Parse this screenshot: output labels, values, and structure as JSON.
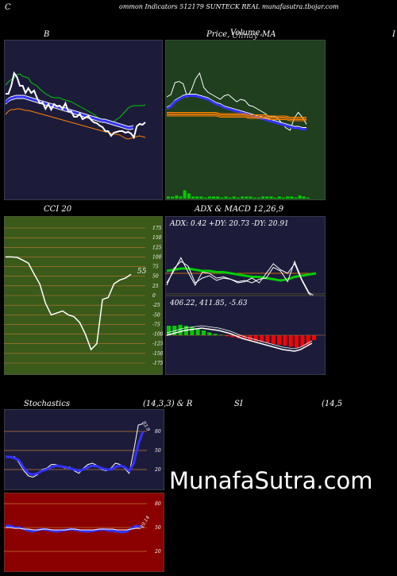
{
  "header": {
    "corner_letter": "C",
    "title": "ommon  Indicators 512179 SUNTECK REAL  munafasutra.tbojar.com",
    "right_edge_letter": "I"
  },
  "panels": {
    "bollinger": {
      "title": "B"
    },
    "price": {
      "title_a": "Price,",
      "title_b": "Volume,",
      "title_c": "MA",
      "title_overlap": "Ullnay"
    },
    "cci": {
      "title": "CCI 20",
      "last_value": "55",
      "ticks": [
        "175",
        "150",
        "125",
        "100",
        "75",
        "50",
        "25",
        "0",
        "-25",
        "-50",
        "-75",
        "-100",
        "-125",
        "-150",
        "-175"
      ]
    },
    "adx": {
      "title": "ADX  & MACD 12,26,9",
      "readout": "ADX: 0.42  +DY: 20.73 -DY: 20.91"
    },
    "macd": {
      "readout": "406.22,  411.85,  -5.63"
    },
    "stoch": {
      "title_left": "Stochastics",
      "title_mid": "(14,3,3) & R",
      "title_si": "SI",
      "title_right": "(14,5",
      "ticks": [
        "80",
        "50",
        "20"
      ],
      "last_label": "83.9"
    },
    "rsi": {
      "ticks": [
        "80",
        "50",
        "20"
      ],
      "last_label": "49.14"
    }
  },
  "watermark": "MunafaSutra.com",
  "colors": {
    "bollinger_bg": "#1c1c3a",
    "price_bg": "#1f3f1f",
    "cci_bg": "#3a5a1a",
    "adx_bg": "#1c1c3a",
    "stoch_bg": "#1c1c3a",
    "rsi_bg": "#8b0000"
  },
  "chart_data": [
    {
      "type": "line",
      "name": "bollinger",
      "series": [
        {
          "name": "upper",
          "color": "#00cc00",
          "values": [
            63,
            67,
            70,
            72,
            76,
            77,
            74,
            73,
            72,
            66,
            64,
            62,
            58,
            55,
            52,
            50,
            48,
            47,
            47,
            47,
            45,
            44,
            43,
            42,
            40,
            38,
            36,
            34,
            32,
            30,
            28,
            26,
            23,
            20,
            19,
            18,
            17,
            16,
            17,
            20,
            22,
            26,
            30,
            34,
            36,
            37,
            37,
            37,
            37,
            38
          ]
        },
        {
          "name": "middle",
          "color": "#3333ff",
          "values": [
            41,
            44,
            46,
            47,
            48,
            48,
            48,
            48,
            47,
            46,
            45,
            44,
            43,
            42,
            41,
            40,
            39,
            38,
            37,
            36,
            35,
            34,
            33,
            32,
            31,
            30,
            29,
            28,
            27,
            26,
            25,
            24,
            23,
            22,
            21,
            20,
            19,
            18,
            18,
            17,
            16,
            15,
            14,
            13,
            12,
            11,
            10,
            9,
            9,
            10
          ]
        },
        {
          "name": "lower",
          "color": "#ff8000",
          "values": [
            26,
            30,
            32,
            32,
            33,
            33,
            32,
            31,
            31,
            30,
            29,
            28,
            27,
            26,
            25,
            24,
            23,
            22,
            21,
            20,
            19,
            18,
            17,
            16,
            15,
            14,
            13,
            12,
            11,
            10,
            9,
            8,
            7,
            6,
            5,
            4,
            3,
            2,
            1,
            1,
            0,
            -2,
            -4,
            -5,
            -4,
            -3,
            -2,
            -1,
            -2,
            -3
          ]
        },
        {
          "name": "price",
          "color": "#ffffff",
          "values": [
            52,
            52,
            62,
            78,
            73,
            62,
            62,
            53,
            59,
            53,
            56,
            47,
            40,
            41,
            33,
            39,
            32,
            39,
            36,
            37,
            33,
            40,
            30,
            30,
            23,
            23,
            27,
            20,
            22,
            24,
            19,
            16,
            15,
            12,
            10,
            5,
            5,
            -1,
            3,
            4,
            5,
            5,
            3,
            4,
            2,
            -3,
            11,
            14,
            13,
            16
          ]
        }
      ]
    },
    {
      "type": "line",
      "name": "price-ma",
      "series": [
        {
          "name": "price",
          "color": "#ffffff",
          "values": [
            22,
            24,
            34,
            35,
            33,
            22,
            28,
            37,
            42,
            30,
            26,
            24,
            22,
            20,
            23,
            24,
            21,
            18,
            20,
            19,
            15,
            14,
            12,
            10,
            8,
            5,
            6,
            4,
            0,
            -4,
            -6,
            4,
            9,
            5,
            -1
          ]
        },
        {
          "name": "ma-blue",
          "color": "#3333ff",
          "values": [
            12,
            14,
            18,
            20,
            22,
            23,
            23,
            23,
            22,
            21,
            20,
            18,
            16,
            15,
            13,
            12,
            11,
            10,
            9,
            8,
            7,
            6,
            5,
            4,
            3,
            2,
            1,
            0,
            -1,
            -2,
            -3,
            -4,
            -4,
            -5,
            -5
          ]
        },
        {
          "name": "ma-orange",
          "color": "#ff8000",
          "values": [
            9,
            9,
            9,
            9,
            9,
            9,
            9,
            9,
            9,
            9,
            9,
            9,
            9,
            8,
            8,
            8,
            8,
            8,
            8,
            8,
            7,
            7,
            7,
            7,
            7,
            6,
            6,
            6,
            6,
            6,
            5,
            5,
            5,
            5,
            5
          ]
        }
      ],
      "volume": [
        2,
        2,
        3,
        2,
        8,
        5,
        2,
        2,
        2,
        1,
        2,
        2,
        2,
        1,
        2,
        1,
        2,
        1,
        2,
        2,
        2,
        1,
        1,
        2,
        2,
        2,
        1,
        2,
        1,
        2,
        2,
        1,
        3,
        2,
        1
      ]
    },
    {
      "type": "line",
      "name": "cci-20",
      "ylim": [
        -175,
        175
      ],
      "values": [
        100,
        100,
        99,
        92,
        84,
        56,
        30,
        -20,
        -50,
        -45,
        -40,
        -50,
        -55,
        -70,
        -100,
        -140,
        -125,
        -10,
        -5,
        30,
        40,
        45,
        55
      ]
    },
    {
      "type": "line",
      "name": "adx",
      "series": [
        {
          "name": "adx",
          "color": "#00cc00",
          "values": [
            4,
            5,
            6,
            6,
            5,
            4,
            4,
            3,
            3,
            2,
            1,
            0,
            -1,
            -1,
            -2,
            -3,
            -4,
            -3,
            -1,
            0,
            1,
            2
          ]
        },
        {
          "name": "+DI",
          "color": "#ffffff",
          "values": [
            -8,
            6,
            12,
            8,
            -6,
            -2,
            0,
            -4,
            -2,
            -3,
            -5,
            -4,
            -6,
            -3,
            -2,
            7,
            4,
            -5,
            12,
            -3,
            -14,
            -18
          ]
        },
        {
          "name": "-DI",
          "color": "#ffffff",
          "values": [
            -6,
            4,
            15,
            3,
            -8,
            3,
            2,
            -2,
            -1,
            -3,
            -6,
            -5,
            -2,
            -6,
            2,
            10,
            5,
            2,
            10,
            -4,
            -15,
            -20
          ]
        }
      ]
    },
    {
      "type": "bar",
      "name": "macd-histogram",
      "values": [
        20,
        20,
        22,
        20,
        18,
        14,
        10,
        6,
        3,
        1,
        -2,
        -4,
        -6,
        -8,
        -10,
        -12,
        -14,
        -16,
        -18,
        -20,
        -22,
        -24,
        -26,
        -24,
        -20,
        -10
      ]
    },
    {
      "type": "line",
      "name": "stochastics",
      "ylim": [
        0,
        100
      ],
      "series": [
        {
          "name": "%K",
          "color": "#ffffff",
          "values": [
            40,
            40,
            40,
            30,
            18,
            10,
            8,
            12,
            20,
            22,
            28,
            28,
            25,
            22,
            24,
            18,
            14,
            22,
            28,
            30,
            26,
            20,
            18,
            22,
            30,
            28,
            22,
            14,
            50,
            90,
            92
          ]
        },
        {
          "name": "%D",
          "color": "#3333ff",
          "values": [
            40,
            40,
            38,
            34,
            22,
            14,
            12,
            14,
            18,
            20,
            24,
            26,
            25,
            24,
            22,
            20,
            18,
            20,
            24,
            26,
            25,
            22,
            20,
            20,
            24,
            26,
            24,
            18,
            30,
            60,
            80
          ]
        }
      ]
    },
    {
      "type": "line",
      "name": "rsi",
      "ylim": [
        0,
        100
      ],
      "series": [
        {
          "name": "rsi",
          "color": "#3333ff",
          "values": [
            52,
            52,
            50,
            50,
            48,
            46,
            45,
            47,
            48,
            47,
            46,
            45,
            46,
            47,
            48,
            47,
            46,
            45,
            45,
            46,
            47,
            48,
            46,
            46,
            45,
            44,
            45,
            49,
            52,
            51
          ]
        },
        {
          "name": "signal",
          "color": "#ffffff",
          "values": [
            50,
            50,
            49,
            49,
            48,
            48,
            47,
            47,
            48,
            48,
            47,
            47,
            47,
            47,
            48,
            48,
            47,
            47,
            47,
            47,
            48,
            48,
            48,
            48,
            47,
            47,
            47,
            48,
            49,
            49
          ]
        }
      ]
    }
  ]
}
